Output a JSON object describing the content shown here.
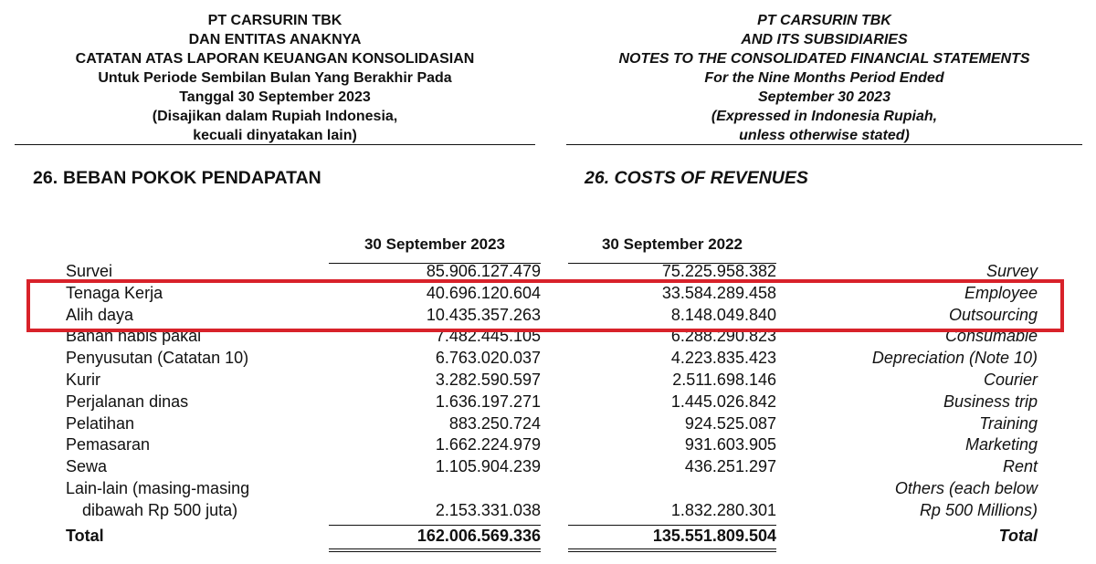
{
  "header_id": {
    "lines": [
      "PT CARSURIN TBK",
      "DAN ENTITAS ANAKNYA",
      "CATATAN ATAS LAPORAN KEUANGAN KONSOLIDASIAN",
      "Untuk Periode Sembilan Bulan Yang Berakhir Pada",
      "Tanggal 30 September 2023",
      "(Disajikan dalam Rupiah Indonesia,",
      "kecuali dinyatakan lain)"
    ]
  },
  "header_en": {
    "lines": [
      "PT CARSURIN TBK",
      "AND ITS SUBSIDIARIES",
      "NOTES TO THE CONSOLIDATED FINANCIAL STATEMENTS",
      "For the Nine Months Period Ended",
      "September 30 2023",
      "(Expressed in Indonesia Rupiah,",
      "unless otherwise stated)"
    ]
  },
  "section": {
    "number": "26.",
    "title_id": "BEBAN POKOK PENDAPATAN",
    "title_en": "26. COSTS OF REVENUES"
  },
  "columns": [
    "30 September 2023",
    "30 September 2022"
  ],
  "rows": [
    {
      "id": "Survei",
      "v2023": "85.906.127.479",
      "v2022": "75.225.958.382",
      "en": "Survey"
    },
    {
      "id": "Tenaga Kerja",
      "v2023": "40.696.120.604",
      "v2022": "33.584.289.458",
      "en": "Employee"
    },
    {
      "id": "Alih daya",
      "v2023": "10.435.357.263",
      "v2022": "8.148.049.840",
      "en": "Outsourcing"
    },
    {
      "id": "Bahan habis pakai",
      "v2023": "7.482.445.105",
      "v2022": "6.288.290.823",
      "en": "Consumable"
    },
    {
      "id": "Penyusutan (Catatan 10)",
      "v2023": "6.763.020.037",
      "v2022": "4.223.835.423",
      "en": "Depreciation (Note 10)"
    },
    {
      "id": "Kurir",
      "v2023": "3.282.590.597",
      "v2022": "2.511.698.146",
      "en": "Courier"
    },
    {
      "id": "Perjalanan dinas",
      "v2023": "1.636.197.271",
      "v2022": "1.445.026.842",
      "en": "Business trip"
    },
    {
      "id": "Pelatihan",
      "v2023": "883.250.724",
      "v2022": "924.525.087",
      "en": "Training"
    },
    {
      "id": "Pemasaran",
      "v2023": "1.662.224.979",
      "v2022": "931.603.905",
      "en": "Marketing"
    },
    {
      "id": "Sewa",
      "v2023": "1.105.904.239",
      "v2022": "436.251.297",
      "en": "Rent"
    },
    {
      "id": "Lain-lain (masing-masing",
      "v2023": "",
      "v2022": "",
      "en": "Others (each below"
    },
    {
      "id": "dibawah Rp 500 juta)",
      "v2023": "2.153.331.038",
      "v2022": "1.832.280.301",
      "en": "Rp 500 Millions)"
    }
  ],
  "total": {
    "id": "Total",
    "v2023": "162.006.569.336",
    "v2022": "135.551.809.504",
    "en": "Total"
  },
  "highlight_color": "#d8222a"
}
